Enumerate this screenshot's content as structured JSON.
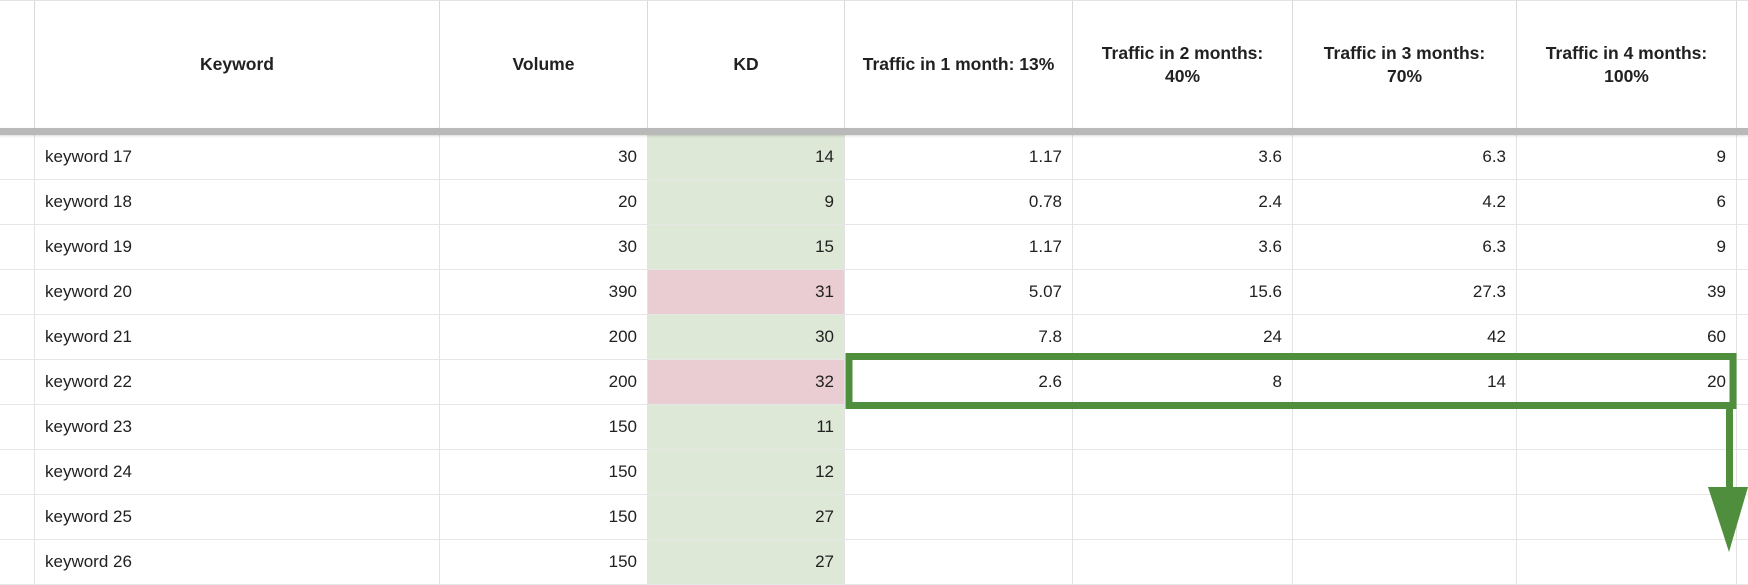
{
  "sheet": {
    "columns": [
      {
        "key": "rowhead",
        "label": "",
        "align": "left"
      },
      {
        "key": "keyword",
        "label": "Keyword",
        "align": "left"
      },
      {
        "key": "volume",
        "label": "Volume",
        "align": "right"
      },
      {
        "key": "kd",
        "label": "KD",
        "align": "right"
      },
      {
        "key": "t1",
        "label": "Traffic in 1 month: 13%",
        "align": "right"
      },
      {
        "key": "t2",
        "label": "Traffic in 2 months: 40%",
        "align": "right"
      },
      {
        "key": "t3",
        "label": "Traffic in 3 months: 70%",
        "align": "right"
      },
      {
        "key": "t4",
        "label": "Traffic in 4 months: 100%",
        "align": "right"
      },
      {
        "key": "overflow",
        "label": "",
        "align": "left"
      }
    ],
    "rows": [
      {
        "keyword": "keyword 17",
        "volume": "30",
        "kd": "14",
        "kd_level": "green",
        "t1": "1.17",
        "t2": "3.6",
        "t3": "6.3",
        "t4": "9",
        "selected": false
      },
      {
        "keyword": "keyword 18",
        "volume": "20",
        "kd": "9",
        "kd_level": "green",
        "t1": "0.78",
        "t2": "2.4",
        "t3": "4.2",
        "t4": "6",
        "selected": false
      },
      {
        "keyword": "keyword 19",
        "volume": "30",
        "kd": "15",
        "kd_level": "green",
        "t1": "1.17",
        "t2": "3.6",
        "t3": "6.3",
        "t4": "9",
        "selected": false
      },
      {
        "keyword": "keyword 20",
        "volume": "390",
        "kd": "31",
        "kd_level": "red",
        "t1": "5.07",
        "t2": "15.6",
        "t3": "27.3",
        "t4": "39",
        "selected": false
      },
      {
        "keyword": "keyword 21",
        "volume": "200",
        "kd": "30",
        "kd_level": "green",
        "t1": "7.8",
        "t2": "24",
        "t3": "42",
        "t4": "60",
        "selected": false
      },
      {
        "keyword": "keyword 22",
        "volume": "200",
        "kd": "32",
        "kd_level": "red",
        "t1": "2.6",
        "t2": "8",
        "t3": "14",
        "t4": "20",
        "selected": true
      },
      {
        "keyword": "keyword 23",
        "volume": "150",
        "kd": "11",
        "kd_level": "green",
        "t1": "",
        "t2": "",
        "t3": "",
        "t4": "",
        "selected": false
      },
      {
        "keyword": "keyword 24",
        "volume": "150",
        "kd": "12",
        "kd_level": "green",
        "t1": "",
        "t2": "",
        "t3": "",
        "t4": "",
        "selected": false
      },
      {
        "keyword": "keyword 25",
        "volume": "150",
        "kd": "27",
        "kd_level": "green",
        "t1": "",
        "t2": "",
        "t3": "",
        "t4": "",
        "selected": false
      },
      {
        "keyword": "keyword 26",
        "volume": "150",
        "kd": "27",
        "kd_level": "green",
        "t1": "",
        "t2": "",
        "t3": "",
        "t4": "",
        "selected": false
      }
    ],
    "selection_note": "green box around traffic cells of keyword 22 with arrow pointing down"
  },
  "colors": {
    "kd_green": "#dde8d6",
    "kd_red": "#e9cdd2",
    "selection_green": "#4e8e3d",
    "freeze_bar_gray": "#b9b9b9",
    "grid_line": "#e3e3e3",
    "text": "#212121"
  }
}
